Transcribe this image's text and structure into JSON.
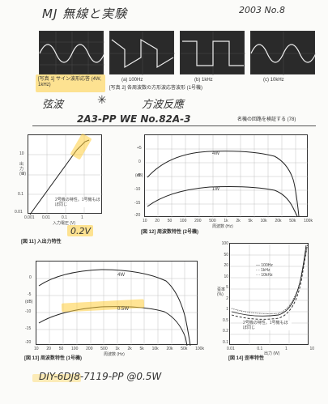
{
  "header": {
    "title_handwritten": "MJ 無線と実験",
    "date_handwritten": "2003 No.8"
  },
  "photos": {
    "photo1_caption": "[写真 1]  サイン波形応答 (4W, 1kHz)",
    "photo2_caption": "[写真 2]  各周波数の方形波応答波形 (1号機)",
    "sub_a": "(a) 100Hz",
    "sub_b": "(b) 1kHz",
    "sub_c": "(c) 10kHz"
  },
  "notes": {
    "sine_note": "弦波",
    "square_note": "方波反應",
    "model_note": "2A3-PP  WE No.82A-3",
    "page_heading": "名機の回路を検証する (78)",
    "gain_note": "0.2V",
    "bottom_note": "DIY-6DJ8-7119-PP @0.5W"
  },
  "fig11": {
    "caption": "[図 11]  入出力特性",
    "ylabel": "出力 (W)",
    "xlabel": "入力電圧 (V)",
    "yticks": [
      "10",
      "1",
      "0.1",
      "0.01"
    ],
    "xticks": [
      "0.001",
      "0.01",
      "0.1",
      "1"
    ],
    "legend": "2号機の特性。1号機もほぼ同じ"
  },
  "fig12": {
    "caption": "[図 12]  周波数特性 (2号機)",
    "ylabel": "(dB)",
    "xlabel": "周波数 (Hz)",
    "yticks": [
      "+5",
      "0",
      "-5",
      "-10",
      "-15",
      "-20"
    ],
    "xticks": [
      "10",
      "20",
      "50",
      "100",
      "200",
      "500",
      "1k",
      "2k",
      "5k",
      "10k",
      "20k",
      "50k",
      "100k"
    ],
    "series": [
      "4W",
      "1W"
    ]
  },
  "fig13": {
    "caption": "[図 13]  周波数特性 (1号機)",
    "ylabel": "(dB)",
    "xlabel": "周波数 (Hz)",
    "yticks": [
      "0",
      "-5",
      "-10",
      "-15",
      "-20"
    ],
    "xticks": [
      "10",
      "20",
      "50",
      "100",
      "200",
      "500",
      "1k",
      "2k",
      "5k",
      "10k",
      "20k",
      "50k",
      "100k"
    ],
    "series": [
      "4W",
      "0.5W"
    ]
  },
  "fig14": {
    "caption": "[図 14]  歪率特性",
    "ylabel": "歪率 (%)",
    "xlabel": "出力 (W)",
    "yticks": [
      "100",
      "50",
      "20",
      "10",
      "5",
      "2",
      "1",
      "0.5",
      "0.2",
      "0.1"
    ],
    "xticks": [
      "0.01",
      "0.1",
      "1",
      "10"
    ],
    "legend": [
      "100Hz",
      "1kHz",
      "10kHz"
    ],
    "note": "2号機の特性。1号機もほぼ同じ"
  },
  "colors": {
    "highlight": "#f5c842",
    "ink": "#222222",
    "grid": "#999999"
  }
}
